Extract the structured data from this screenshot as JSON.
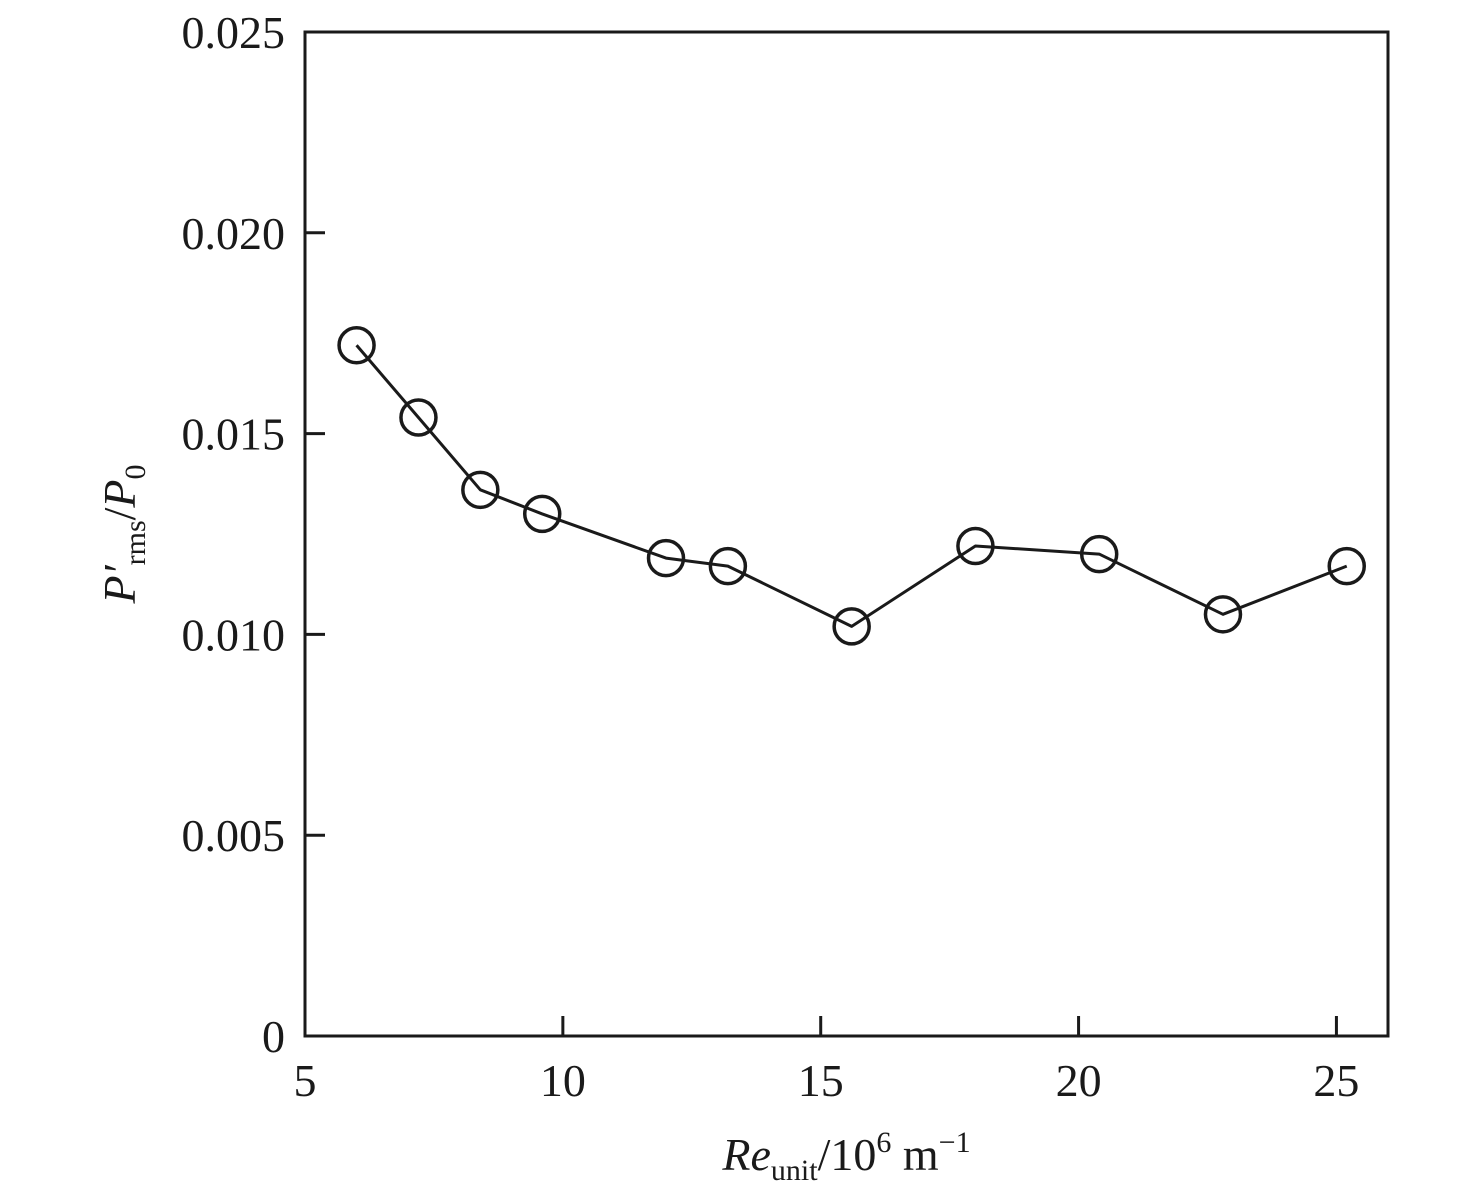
{
  "chart_data": {
    "type": "line",
    "title": "",
    "xlabel": {
      "main": "Re",
      "sub": "unit",
      "unit_prefix": "/10",
      "unit_exp": "6",
      "unit_tail": " m",
      "unit_tail_exp": "−1"
    },
    "ylabel": {
      "main": "P′",
      "sub": "rms",
      "sep": "/",
      "denom": "P",
      "denom_sub": "0"
    },
    "xlim": [
      5,
      26
    ],
    "ylim": [
      0,
      0.025
    ],
    "x_ticks": [
      5,
      10,
      15,
      20,
      25
    ],
    "x_tick_labels": [
      "5",
      "10",
      "15",
      "20",
      "25"
    ],
    "y_ticks": [
      0,
      0.005,
      0.01,
      0.015,
      0.02,
      0.025
    ],
    "y_tick_labels": [
      "0",
      "0.005",
      "0.010",
      "0.015",
      "0.020",
      "0.025"
    ],
    "grid": false,
    "legend": "none",
    "series": [
      {
        "marker": "open-circle",
        "color": "#1a1a1a",
        "x": [
          6.0,
          7.2,
          8.4,
          9.6,
          12.0,
          13.2,
          15.6,
          18.0,
          20.4,
          22.8,
          25.2
        ],
        "y": [
          0.0172,
          0.0154,
          0.0136,
          0.013,
          0.0119,
          0.0117,
          0.0102,
          0.0122,
          0.012,
          0.0105,
          0.0117
        ]
      }
    ]
  }
}
